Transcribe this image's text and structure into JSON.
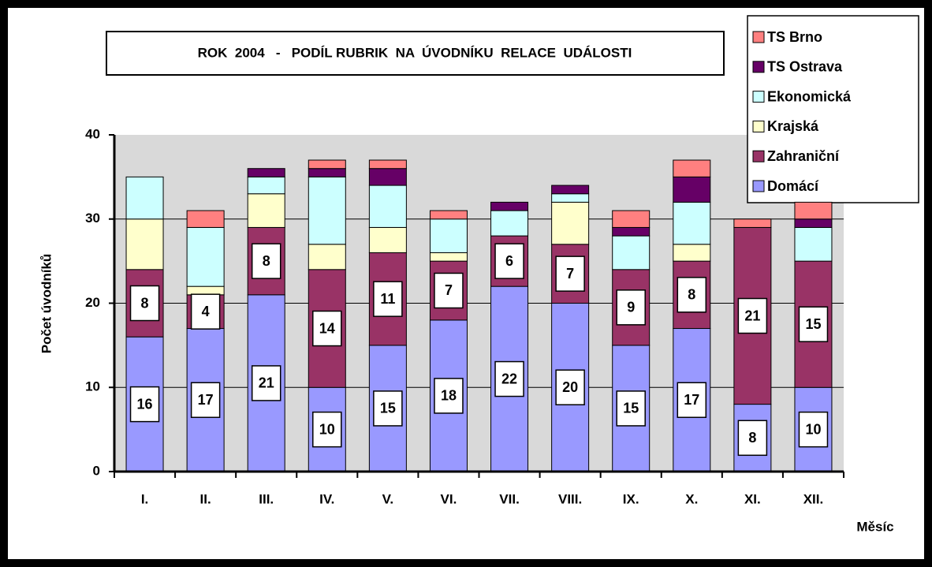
{
  "chart_data": {
    "type": "stacked_bar",
    "title": "ROK  2004   -   PODÍL RUBRIK  NA  ÚVODNÍKU  RELACE  UDÁLOSTI",
    "x_label": "Měsíc",
    "y_label": "Počet úvodníků",
    "categories": [
      "I.",
      "II.",
      "III.",
      "IV.",
      "V.",
      "VI.",
      "VII.",
      "VIII.",
      "IX.",
      "X.",
      "XI.",
      "XII."
    ],
    "series": [
      {
        "name": "Domácí",
        "color": "#9999ff",
        "labels": true,
        "values": [
          16,
          17,
          21,
          10,
          15,
          18,
          22,
          20,
          15,
          17,
          8,
          10
        ]
      },
      {
        "name": "Zahraniční",
        "color": "#993366",
        "labels": true,
        "values": [
          8,
          4,
          8,
          14,
          11,
          7,
          6,
          7,
          9,
          8,
          21,
          15
        ]
      },
      {
        "name": "Krajská",
        "color": "#ffffcc",
        "values": [
          6,
          1,
          4,
          3,
          3,
          1,
          0,
          5,
          0,
          2,
          0,
          0
        ]
      },
      {
        "name": "Ekonomická",
        "color": "#ccffff",
        "values": [
          5,
          7,
          2,
          8,
          5,
          4,
          3,
          1,
          4,
          5,
          0,
          4
        ]
      },
      {
        "name": "TS Ostrava",
        "color": "#660066",
        "values": [
          0,
          0,
          1,
          1,
          2,
          0,
          1,
          1,
          1,
          3,
          0,
          1
        ]
      },
      {
        "name": "TS Brno",
        "color": "#ff8080",
        "values": [
          0,
          2,
          0,
          1,
          1,
          1,
          0,
          0,
          2,
          2,
          1,
          2
        ]
      }
    ],
    "ylim": [
      0,
      40
    ],
    "yticks": [
      0,
      10,
      20,
      30,
      40
    ],
    "grid": true
  }
}
